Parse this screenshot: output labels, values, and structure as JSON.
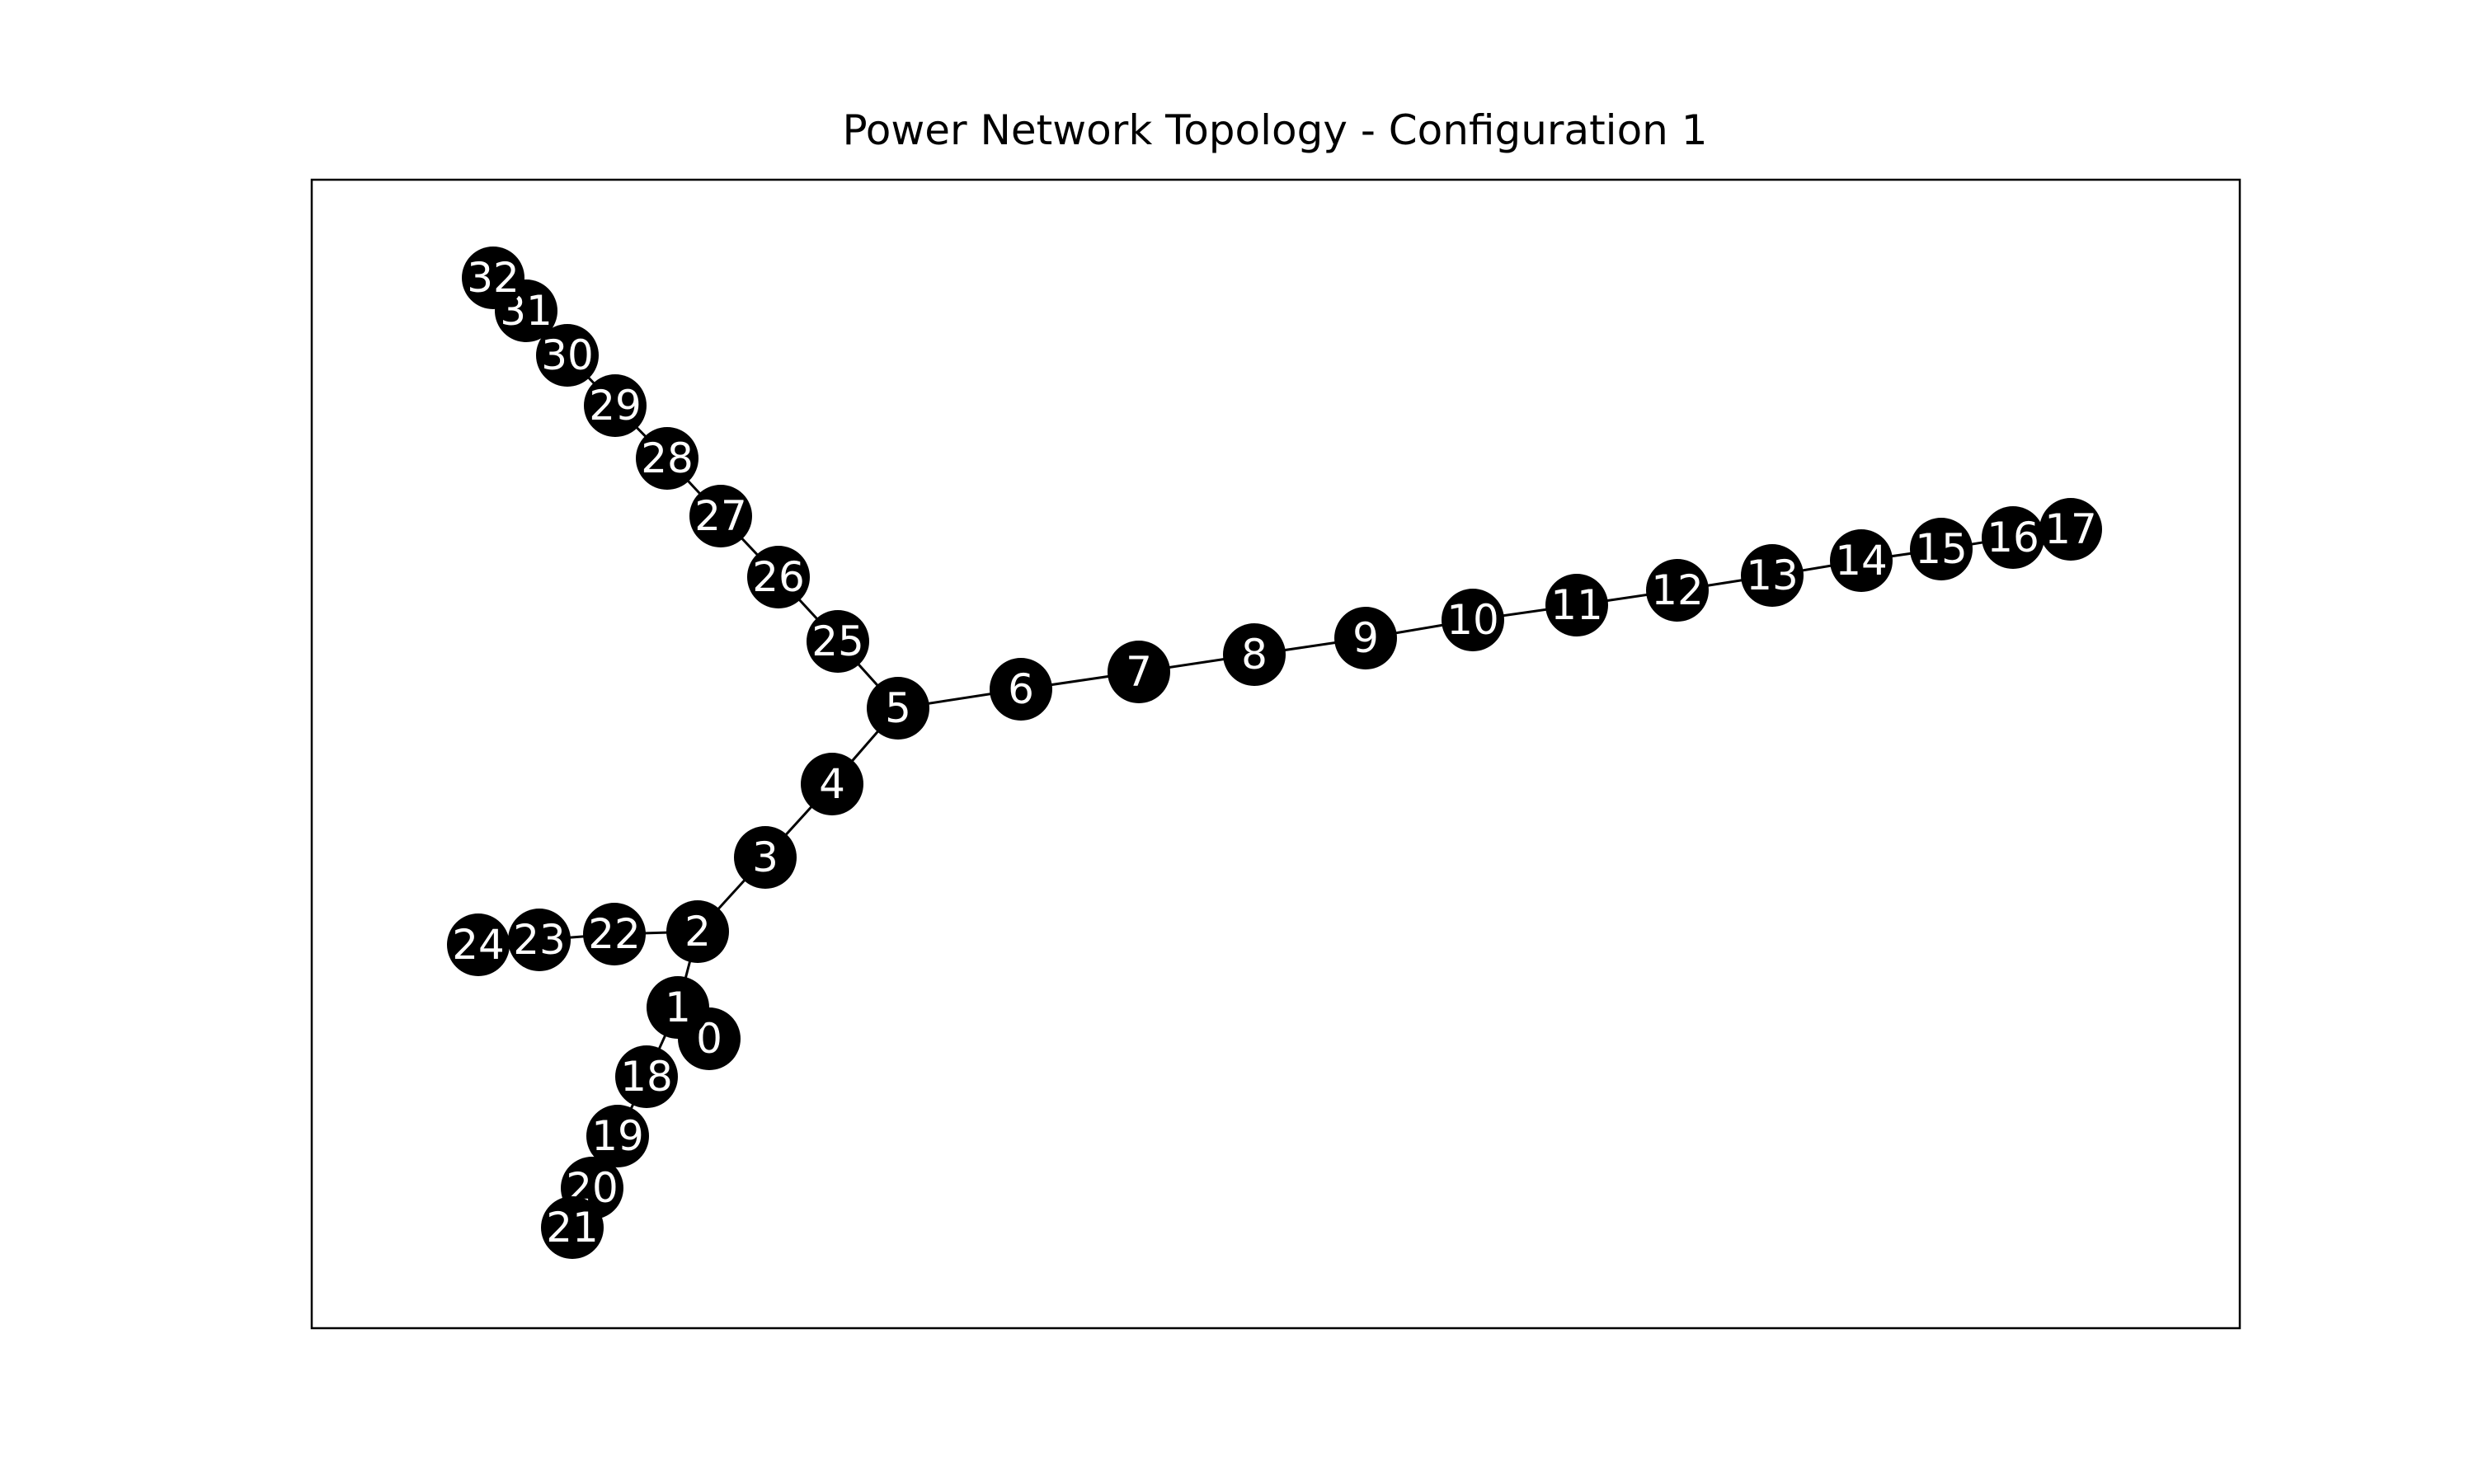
{
  "title": "Power Network Topology - Configuration 1",
  "colors": {
    "node_fill": "#000000",
    "node_label": "#ffffff",
    "edge": "#000000",
    "frame": "#000000",
    "background": "#ffffff"
  },
  "nodes": [
    {
      "id": "0",
      "label": "0"
    },
    {
      "id": "1",
      "label": "1"
    },
    {
      "id": "2",
      "label": "2"
    },
    {
      "id": "3",
      "label": "3"
    },
    {
      "id": "4",
      "label": "4"
    },
    {
      "id": "5",
      "label": "5"
    },
    {
      "id": "6",
      "label": "6"
    },
    {
      "id": "7",
      "label": "7"
    },
    {
      "id": "8",
      "label": "8"
    },
    {
      "id": "9",
      "label": "9"
    },
    {
      "id": "10",
      "label": "10"
    },
    {
      "id": "11",
      "label": "11"
    },
    {
      "id": "12",
      "label": "12"
    },
    {
      "id": "13",
      "label": "13"
    },
    {
      "id": "14",
      "label": "14"
    },
    {
      "id": "15",
      "label": "15"
    },
    {
      "id": "16",
      "label": "16"
    },
    {
      "id": "17",
      "label": "17"
    },
    {
      "id": "18",
      "label": "18"
    },
    {
      "id": "19",
      "label": "19"
    },
    {
      "id": "20",
      "label": "20"
    },
    {
      "id": "21",
      "label": "21"
    },
    {
      "id": "22",
      "label": "22"
    },
    {
      "id": "23",
      "label": "23"
    },
    {
      "id": "24",
      "label": "24"
    },
    {
      "id": "25",
      "label": "25"
    },
    {
      "id": "26",
      "label": "26"
    },
    {
      "id": "27",
      "label": "27"
    },
    {
      "id": "28",
      "label": "28"
    },
    {
      "id": "29",
      "label": "29"
    },
    {
      "id": "30",
      "label": "30"
    },
    {
      "id": "31",
      "label": "31"
    },
    {
      "id": "32",
      "label": "32"
    }
  ],
  "edges": [
    [
      "0",
      "1"
    ],
    [
      "1",
      "2"
    ],
    [
      "2",
      "3"
    ],
    [
      "3",
      "4"
    ],
    [
      "4",
      "5"
    ],
    [
      "5",
      "6"
    ],
    [
      "6",
      "7"
    ],
    [
      "7",
      "8"
    ],
    [
      "8",
      "9"
    ],
    [
      "9",
      "10"
    ],
    [
      "10",
      "11"
    ],
    [
      "11",
      "12"
    ],
    [
      "12",
      "13"
    ],
    [
      "13",
      "14"
    ],
    [
      "14",
      "15"
    ],
    [
      "15",
      "16"
    ],
    [
      "16",
      "17"
    ],
    [
      "1",
      "18"
    ],
    [
      "18",
      "19"
    ],
    [
      "19",
      "20"
    ],
    [
      "20",
      "21"
    ],
    [
      "2",
      "22"
    ],
    [
      "22",
      "23"
    ],
    [
      "23",
      "24"
    ],
    [
      "5",
      "25"
    ],
    [
      "25",
      "26"
    ],
    [
      "26",
      "27"
    ],
    [
      "27",
      "28"
    ],
    [
      "28",
      "29"
    ],
    [
      "29",
      "30"
    ],
    [
      "30",
      "31"
    ],
    [
      "31",
      "32"
    ]
  ]
}
